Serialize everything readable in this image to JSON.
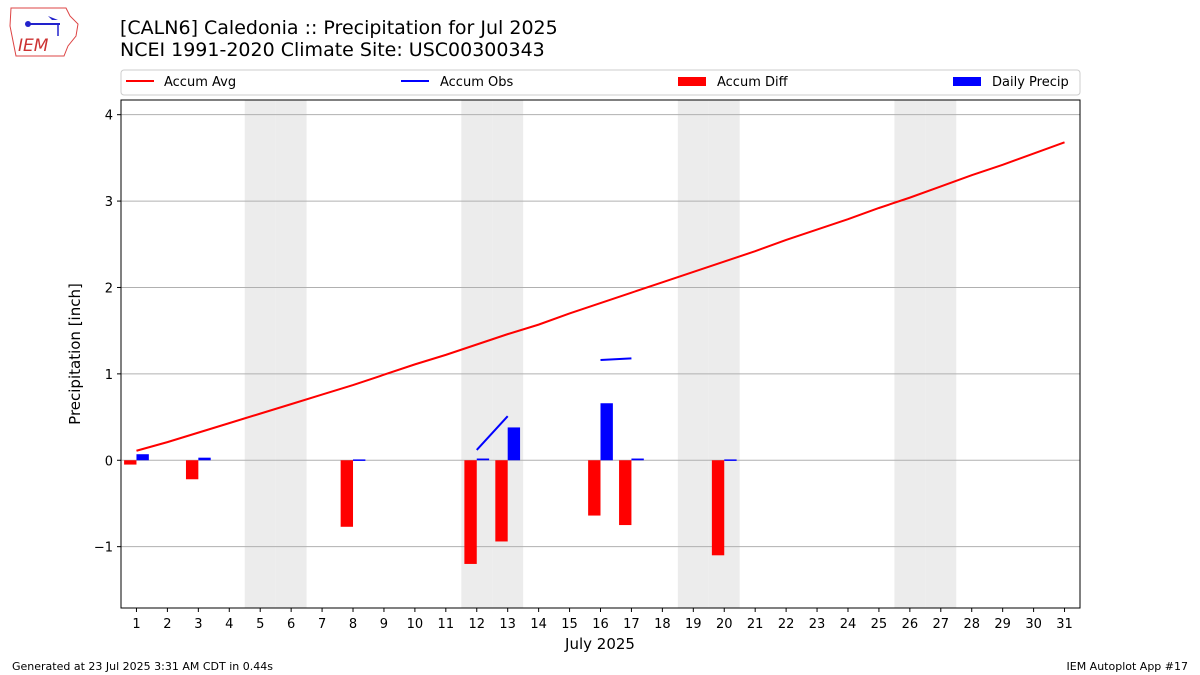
{
  "header": {
    "title": "[CALN6] Caledonia :: Precipitation for Jul 2025",
    "subtitle": "NCEI 1991-2020 Climate Site: USC00300343",
    "logo_text": "IEM"
  },
  "footer": {
    "left": "Generated at 23 Jul 2025 3:31 AM CDT in 0.44s",
    "right": "IEM Autoplot App #17"
  },
  "colors": {
    "avg": "#ff0000",
    "obs": "#0000ff",
    "diff": "#ff0000",
    "daily": "#0000ff",
    "weekend": "#ececec"
  },
  "chart_data": {
    "type": "bar",
    "xlabel": "July 2025",
    "ylabel": "Precipitation [inch]",
    "xlim": [
      0.5,
      31.5
    ],
    "ylim": [
      -1.71,
      4.17
    ],
    "yticks": [
      -1,
      0,
      1,
      2,
      3,
      4
    ],
    "ytick_labels": [
      "−1",
      "0",
      "1",
      "2",
      "3",
      "4"
    ],
    "x": [
      1,
      2,
      3,
      4,
      5,
      6,
      7,
      8,
      9,
      10,
      11,
      12,
      13,
      14,
      15,
      16,
      17,
      18,
      19,
      20,
      21,
      22,
      23,
      24,
      25,
      26,
      27,
      28,
      29,
      30,
      31
    ],
    "weekend_days": [
      5,
      6,
      12,
      13,
      19,
      20,
      26,
      27
    ],
    "grid": "y",
    "legend": {
      "placement": "top",
      "entries": [
        "Accum Avg",
        "Accum Obs",
        "Accum Diff",
        "Daily Precip"
      ]
    },
    "series": [
      {
        "name": "Accum Avg",
        "type": "line",
        "values": [
          0.11,
          0.21,
          0.32,
          0.43,
          0.54,
          0.65,
          0.76,
          0.87,
          0.99,
          1.11,
          1.22,
          1.34,
          1.46,
          1.57,
          1.7,
          1.82,
          1.94,
          2.06,
          2.18,
          2.3,
          2.42,
          2.55,
          2.67,
          2.79,
          2.92,
          3.04,
          3.17,
          3.3,
          3.42,
          3.55,
          3.68
        ]
      },
      {
        "name": "Accum Obs",
        "type": "line",
        "values": [
          null,
          null,
          null,
          null,
          null,
          null,
          null,
          null,
          null,
          null,
          null,
          0.12,
          0.51,
          null,
          null,
          1.16,
          1.18,
          null,
          null,
          null,
          null,
          null,
          null,
          null,
          null,
          null,
          null,
          null,
          null,
          null,
          null
        ]
      },
      {
        "name": "Accum Diff",
        "type": "bar",
        "values": [
          -0.05,
          null,
          -0.22,
          null,
          null,
          null,
          null,
          -0.77,
          null,
          null,
          null,
          -1.2,
          -0.94,
          null,
          null,
          -0.64,
          -0.75,
          null,
          null,
          -1.1,
          null,
          null,
          null,
          null,
          null,
          null,
          null,
          null,
          null,
          null,
          null
        ]
      },
      {
        "name": "Daily Precip",
        "type": "bar",
        "values": [
          0.07,
          null,
          0.03,
          null,
          null,
          null,
          null,
          0.01,
          null,
          null,
          null,
          0.02,
          0.38,
          null,
          null,
          0.66,
          0.02,
          null,
          null,
          0.01,
          null,
          null,
          null,
          null,
          null,
          null,
          null,
          null,
          null,
          null,
          null
        ]
      }
    ]
  }
}
